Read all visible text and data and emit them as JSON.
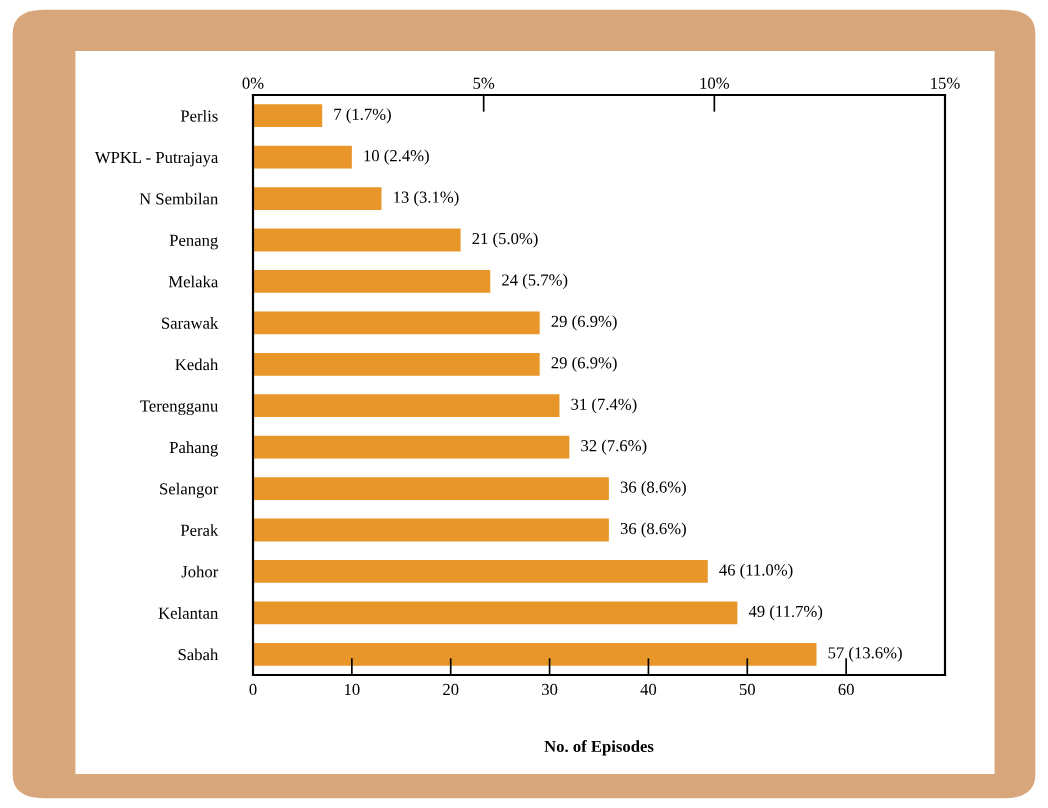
{
  "chart_data": {
    "type": "bar",
    "orientation": "horizontal",
    "xlabel": "No. of Episodes",
    "categories": [
      "Perlis",
      "WPKL - Putrajaya",
      "N Sembilan",
      "Penang",
      "Melaka",
      "Sarawak",
      "Kedah",
      "Terengganu",
      "Pahang",
      "Selangor",
      "Perak",
      "Johor",
      "Kelantan",
      "Sabah"
    ],
    "values": [
      7,
      10,
      13,
      21,
      24,
      29,
      29,
      31,
      32,
      36,
      36,
      46,
      49,
      57
    ],
    "value_labels": [
      "7 (1.7%)",
      "10 (2.4%)",
      "13 (3.1%)",
      "21 (5.0%)",
      "24 (5.7%)",
      "29 (6.9%)",
      "29 (6.9%)",
      "31 (7.4%)",
      "32 (7.6%)",
      "36 (8.6%)",
      "36 (8.6%)",
      "46 (11.0%)",
      "49 (11.7%)",
      "57 (13.6%)"
    ],
    "color": "#e8962a",
    "xlim": [
      0,
      70
    ],
    "xticks": [
      0,
      10,
      20,
      30,
      40,
      50,
      60
    ],
    "x2lim": [
      0,
      15
    ],
    "x2ticks": [
      {
        "value": 0,
        "label": "0%"
      },
      {
        "value": 5,
        "label": "5%"
      },
      {
        "value": 10,
        "label": "10%"
      },
      {
        "value": 15,
        "label": "15%"
      }
    ],
    "grid": false,
    "legend": false
  }
}
